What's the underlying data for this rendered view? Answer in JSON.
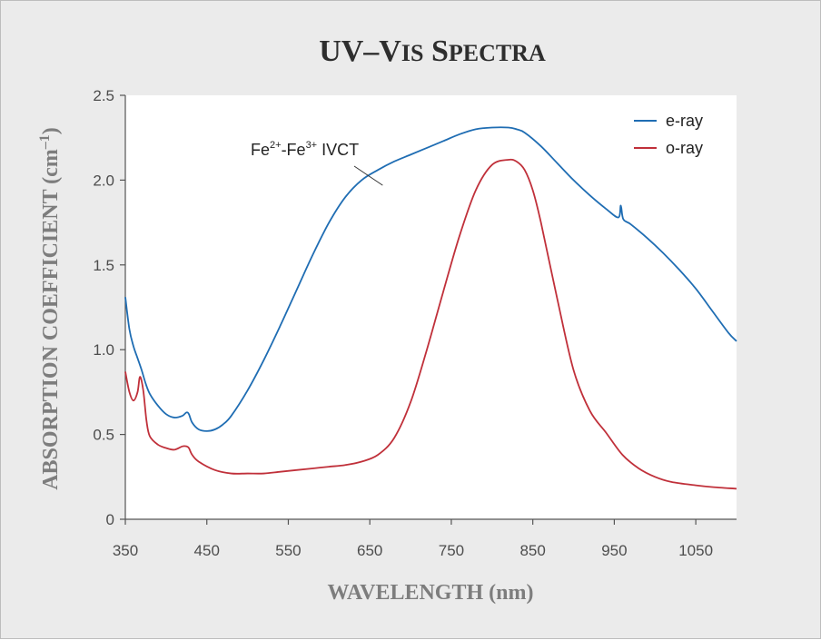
{
  "chart_data": {
    "type": "line",
    "title": "UV–Vis Spectra",
    "xlabel": "WAVELENGTH (nm)",
    "ylabel_main": "ABSORPTION COEFFICIENT (cm",
    "ylabel_sup": "–1",
    "ylabel_close": ")",
    "xlim": [
      350,
      1100
    ],
    "ylim": [
      0,
      2.5
    ],
    "x_ticks": [
      350,
      450,
      550,
      650,
      750,
      850,
      950,
      1050
    ],
    "y_ticks": [
      0,
      0.5,
      1.0,
      1.5,
      2.0,
      2.5
    ],
    "y_tick_labels": [
      "0",
      "0.5",
      "1.0",
      "1.5",
      "2.0",
      "2.5"
    ],
    "grid": false,
    "legend_position": "top-right",
    "series": [
      {
        "name": "e-ray",
        "color": "#1f6db3",
        "x": [
          350,
          355,
          360,
          365,
          370,
          375,
          380,
          390,
          400,
          410,
          420,
          425,
          428,
          432,
          440,
          450,
          460,
          470,
          480,
          500,
          520,
          540,
          560,
          580,
          600,
          620,
          640,
          660,
          680,
          700,
          720,
          740,
          760,
          780,
          800,
          820,
          830,
          840,
          860,
          880,
          900,
          920,
          940,
          955,
          958,
          961,
          970,
          990,
          1010,
          1030,
          1050,
          1070,
          1090,
          1100
        ],
        "y": [
          1.31,
          1.12,
          1.02,
          0.95,
          0.88,
          0.8,
          0.74,
          0.67,
          0.62,
          0.6,
          0.61,
          0.63,
          0.62,
          0.57,
          0.53,
          0.52,
          0.53,
          0.56,
          0.61,
          0.76,
          0.94,
          1.14,
          1.35,
          1.56,
          1.75,
          1.9,
          2.0,
          2.06,
          2.11,
          2.15,
          2.19,
          2.23,
          2.27,
          2.3,
          2.31,
          2.31,
          2.3,
          2.28,
          2.2,
          2.1,
          2.0,
          1.91,
          1.83,
          1.78,
          1.85,
          1.77,
          1.74,
          1.66,
          1.57,
          1.47,
          1.36,
          1.23,
          1.1,
          1.05
        ]
      },
      {
        "name": "o-ray",
        "color": "#c0303a",
        "x": [
          350,
          355,
          360,
          365,
          368,
          372,
          376,
          380,
          390,
          400,
          410,
          420,
          425,
          428,
          432,
          440,
          460,
          480,
          500,
          520,
          540,
          560,
          580,
          600,
          620,
          640,
          660,
          680,
          700,
          720,
          740,
          760,
          780,
          800,
          820,
          830,
          840,
          850,
          860,
          880,
          900,
          920,
          940,
          960,
          980,
          1000,
          1020,
          1050,
          1070,
          1100
        ],
        "y": [
          0.87,
          0.75,
          0.7,
          0.75,
          0.84,
          0.76,
          0.58,
          0.49,
          0.44,
          0.42,
          0.41,
          0.43,
          0.43,
          0.42,
          0.38,
          0.34,
          0.29,
          0.27,
          0.27,
          0.27,
          0.28,
          0.29,
          0.3,
          0.31,
          0.32,
          0.34,
          0.38,
          0.48,
          0.69,
          1.0,
          1.34,
          1.67,
          1.94,
          2.09,
          2.12,
          2.11,
          2.06,
          1.94,
          1.75,
          1.3,
          0.88,
          0.64,
          0.51,
          0.38,
          0.3,
          0.25,
          0.22,
          0.2,
          0.19,
          0.18
        ]
      }
    ],
    "annotation": {
      "base": "Fe",
      "sup1": "2+",
      "mid": "-Fe",
      "sup2": "3+",
      "tail": " IVCT",
      "points_to": {
        "x": 668,
        "y": 1.98
      }
    }
  }
}
